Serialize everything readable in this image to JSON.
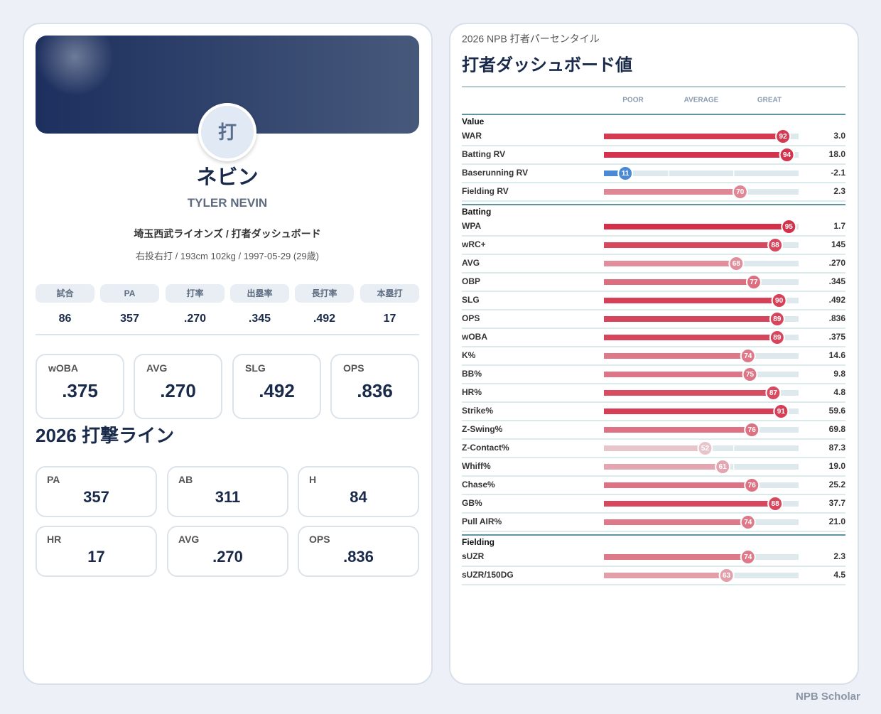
{
  "profile": {
    "avatar": "打",
    "name_ja": "ネビン",
    "name_en": "TYLER NEVIN",
    "team_line": "埼玉西武ライオンズ / 打者ダッシュボード",
    "bio": "右投右打 / 193cm 102kg / 1997-05-29 (29歳)"
  },
  "summary_table": {
    "headers": [
      "試合",
      "PA",
      "打率",
      "出塁率",
      "長打率",
      "本塁打"
    ],
    "values": [
      "86",
      "357",
      ".270",
      ".345",
      ".492",
      "17"
    ]
  },
  "key_stats": [
    {
      "label": "wOBA",
      "value": ".375"
    },
    {
      "label": "AVG",
      "value": ".270"
    },
    {
      "label": "SLG",
      "value": ".492"
    },
    {
      "label": "OPS",
      "value": ".836"
    }
  ],
  "batting_line": {
    "title": "2026 打撃ライン",
    "stats": [
      {
        "label": "PA",
        "value": "357"
      },
      {
        "label": "AB",
        "value": "311"
      },
      {
        "label": "H",
        "value": "84"
      },
      {
        "label": "HR",
        "value": "17"
      },
      {
        "label": "AVG",
        "value": ".270"
      },
      {
        "label": "OPS",
        "value": ".836"
      }
    ]
  },
  "percentiles": {
    "subtitle": "2026 NPB 打者パーセンタイル",
    "title": "打者ダッシュボード値",
    "scale_labels": [
      "POOR",
      "AVERAGE",
      "GREAT"
    ],
    "sections": [
      {
        "name": "Value",
        "rows": [
          {
            "label": "WAR",
            "percentile": 92,
            "value": "3.0"
          },
          {
            "label": "Batting RV",
            "percentile": 94,
            "value": "18.0"
          },
          {
            "label": "Baserunning RV",
            "percentile": 11,
            "value": "-2.1"
          },
          {
            "label": "Fielding RV",
            "percentile": 70,
            "value": "2.3"
          }
        ]
      },
      {
        "name": "Batting",
        "rows": [
          {
            "label": "WPA",
            "percentile": 95,
            "value": "1.7"
          },
          {
            "label": "wRC+",
            "percentile": 88,
            "value": "145"
          },
          {
            "label": "AVG",
            "percentile": 68,
            "value": ".270"
          },
          {
            "label": "OBP",
            "percentile": 77,
            "value": ".345"
          },
          {
            "label": "SLG",
            "percentile": 90,
            "value": ".492"
          },
          {
            "label": "OPS",
            "percentile": 89,
            "value": ".836"
          },
          {
            "label": "wOBA",
            "percentile": 89,
            "value": ".375"
          },
          {
            "label": "K%",
            "percentile": 74,
            "value": "14.6"
          },
          {
            "label": "BB%",
            "percentile": 75,
            "value": "9.8"
          },
          {
            "label": "HR%",
            "percentile": 87,
            "value": "4.8"
          },
          {
            "label": "Strike%",
            "percentile": 91,
            "value": "59.6"
          },
          {
            "label": "Z-Swing%",
            "percentile": 76,
            "value": "69.8"
          },
          {
            "label": "Z-Contact%",
            "percentile": 52,
            "value": "87.3"
          },
          {
            "label": "Whiff%",
            "percentile": 61,
            "value": "19.0"
          },
          {
            "label": "Chase%",
            "percentile": 76,
            "value": "25.2"
          },
          {
            "label": "GB%",
            "percentile": 88,
            "value": "37.7"
          },
          {
            "label": "Pull AIR%",
            "percentile": 74,
            "value": "21.0"
          }
        ]
      },
      {
        "name": "Fielding",
        "rows": [
          {
            "label": "sUZR",
            "percentile": 74,
            "value": "2.3"
          },
          {
            "label": "sUZR/150DG",
            "percentile": 63,
            "value": "4.5"
          }
        ]
      }
    ]
  },
  "footer": "NPB Scholar"
}
